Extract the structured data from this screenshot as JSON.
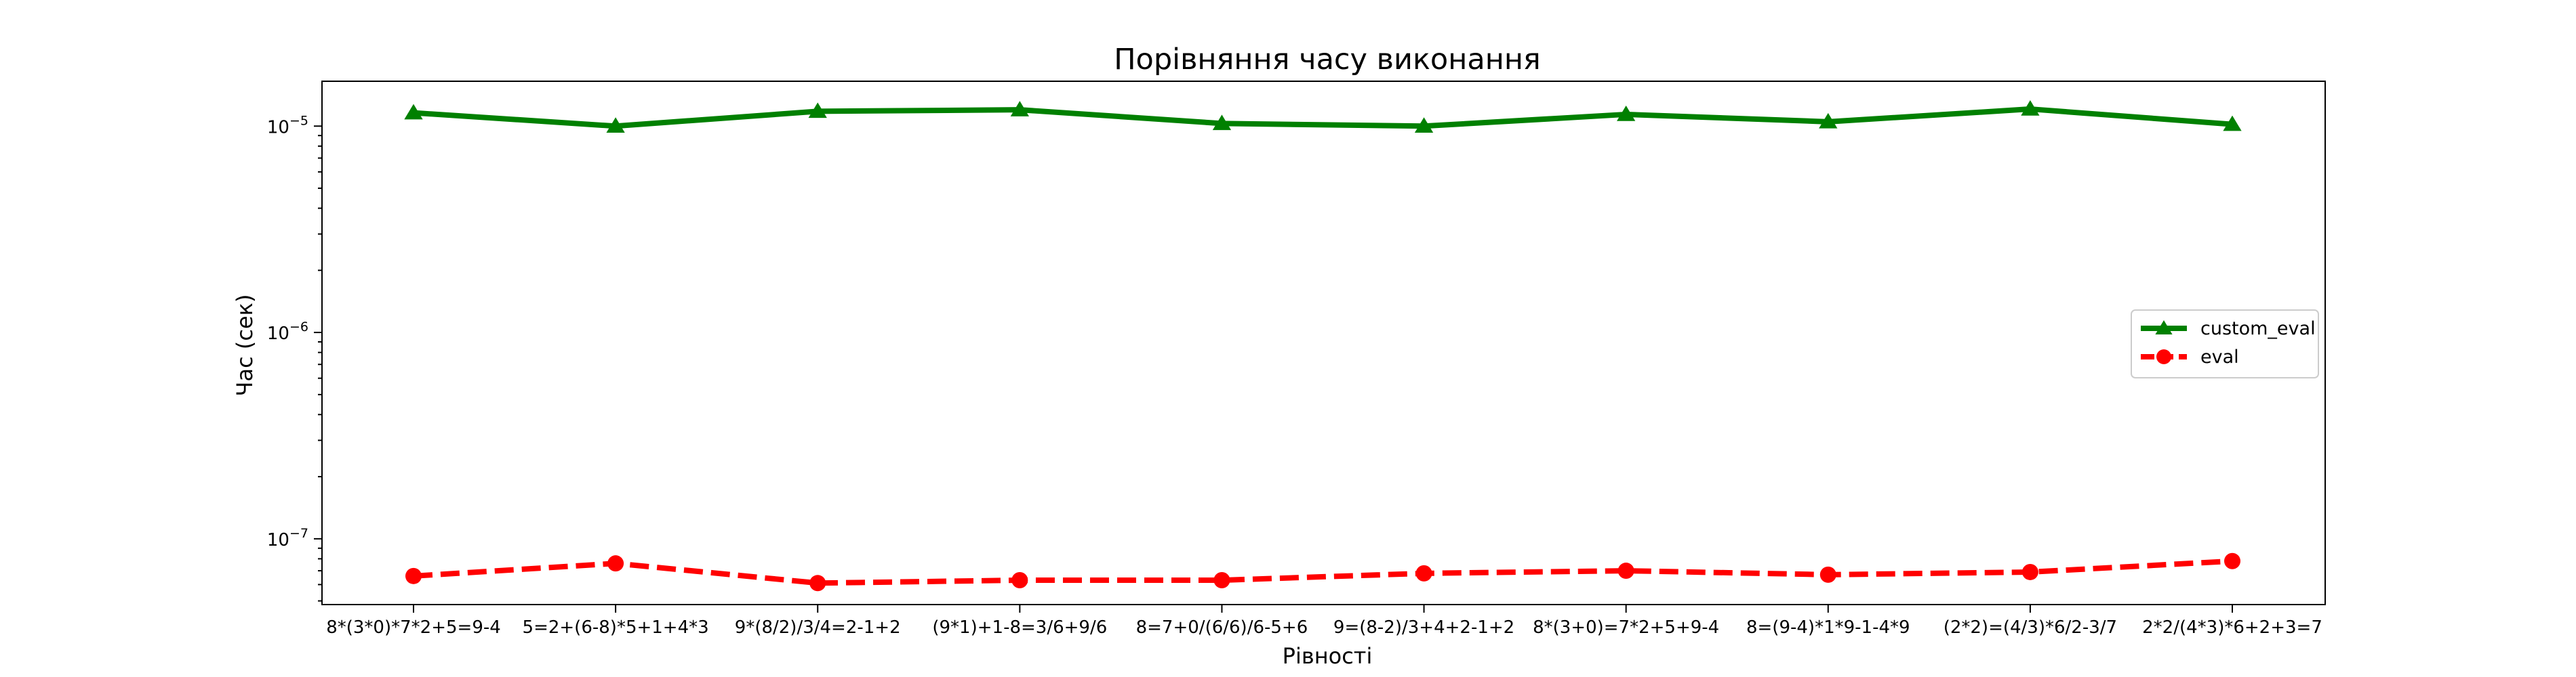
{
  "chart_data": {
    "type": "line",
    "title": "Порівняння часу виконання",
    "xlabel": "Рівності",
    "ylabel": "Час (сек)",
    "yscale": "log",
    "ylim": [
      4.8e-08,
      1.65e-05
    ],
    "y_ticks": [
      {
        "value": 1e-05,
        "base": "10",
        "exp": "−5"
      },
      {
        "value": 1e-06,
        "base": "10",
        "exp": "−6"
      },
      {
        "value": 1e-07,
        "base": "10",
        "exp": "−7"
      }
    ],
    "categories": [
      "8*(3*0)*7*2+5=9-4",
      "5=2+(6-8)*5+1+4*3",
      "9*(8/2)/3/4=2-1+2",
      "(9*1)+1-8=3/6+9/6",
      "8=7+0/(6/6)/6-5+6",
      "9=(8-2)/3+4+2-1+2",
      "8*(3+0)=7*2+5+9-4",
      "8=(9-4)*1*9-1-4*9",
      "(2*2)=(4/3)*6/2-3/7",
      "2*2/(4*3)*6+2+3=7"
    ],
    "series": [
      {
        "name": "custom_eval",
        "color": "#008000",
        "marker": "triangle",
        "dash": "solid",
        "values": [
          1.16e-05,
          1e-05,
          1.18e-05,
          1.2e-05,
          1.03e-05,
          1e-05,
          1.14e-05,
          1.05e-05,
          1.21e-05,
          1.02e-05
        ]
      },
      {
        "name": "eval",
        "color": "#ff0000",
        "marker": "circle",
        "dash": "dashed",
        "values": [
          6.6e-08,
          7.6e-08,
          6.1e-08,
          6.3e-08,
          6.3e-08,
          6.8e-08,
          7e-08,
          6.7e-08,
          6.9e-08,
          7.8e-08
        ]
      }
    ],
    "grid": false,
    "legend": "center-right"
  }
}
